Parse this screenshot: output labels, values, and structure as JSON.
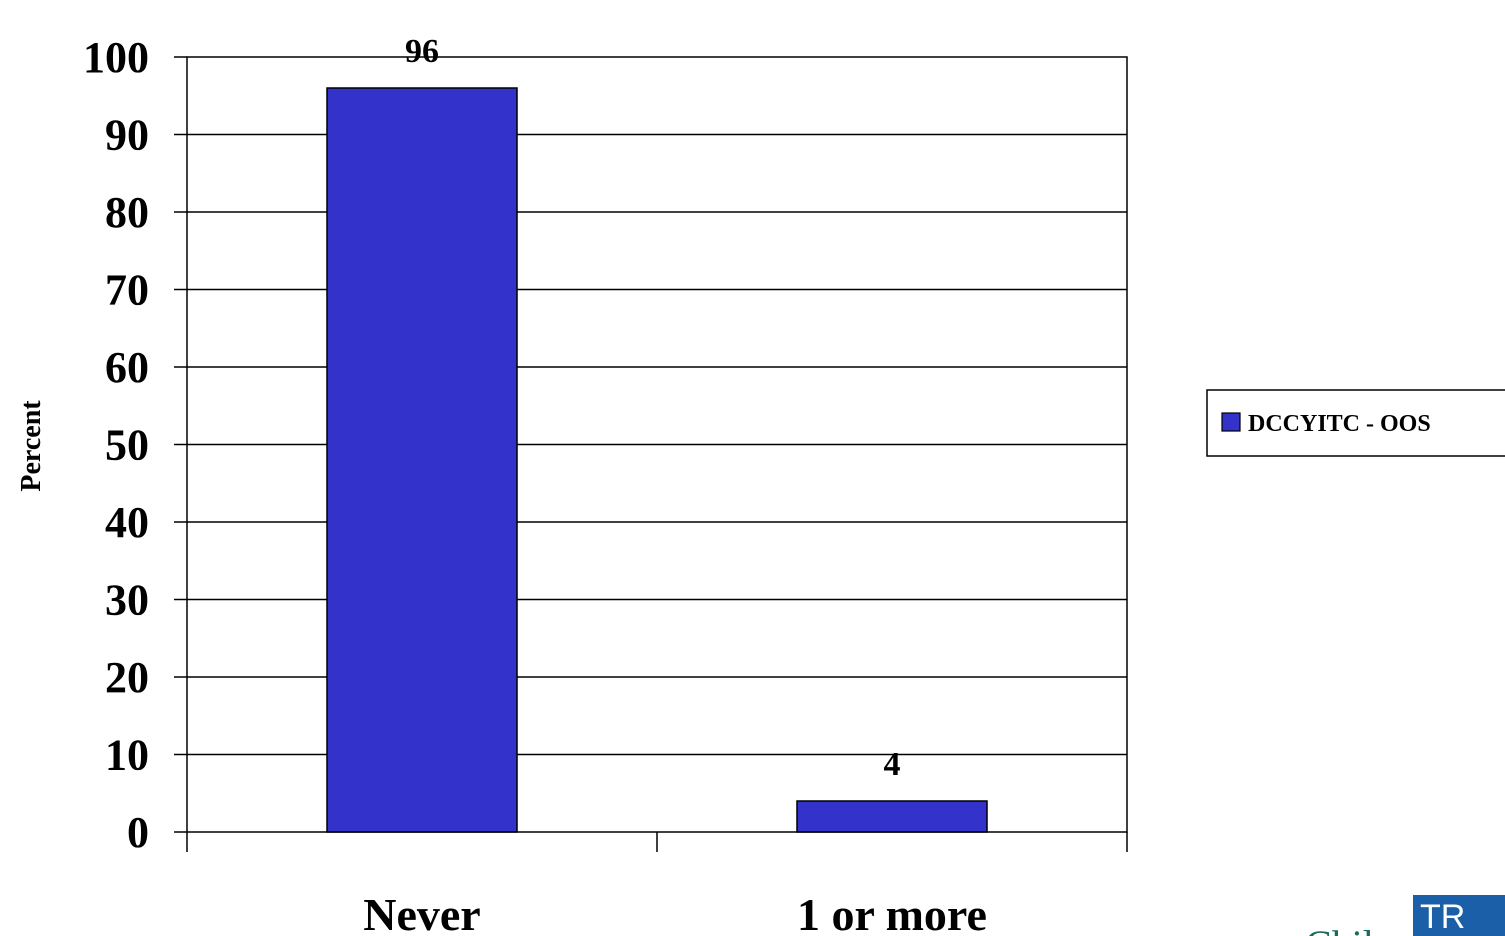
{
  "chart_data": {
    "type": "bar",
    "categories": [
      "Never",
      "1 or more"
    ],
    "series": [
      {
        "name": "DCCYITC - OOS",
        "values": [
          96,
          4
        ],
        "color": "#3333cc"
      }
    ],
    "data_labels": [
      "96",
      "4"
    ],
    "ylabel": "Percent",
    "xlabel": "",
    "title": "",
    "ylim": [
      0,
      100
    ],
    "yticks": [
      0,
      10,
      20,
      30,
      40,
      50,
      60,
      70,
      80,
      90,
      100
    ],
    "grid": true,
    "legend_position": "right"
  },
  "logo": {
    "mark_text": "TR",
    "partial_text": "Chil"
  },
  "colors": {
    "bar": "#3333cc",
    "gridline": "#000000",
    "logo_teal": "#1a6b5a",
    "logo_mark": "#1a5fa8"
  }
}
